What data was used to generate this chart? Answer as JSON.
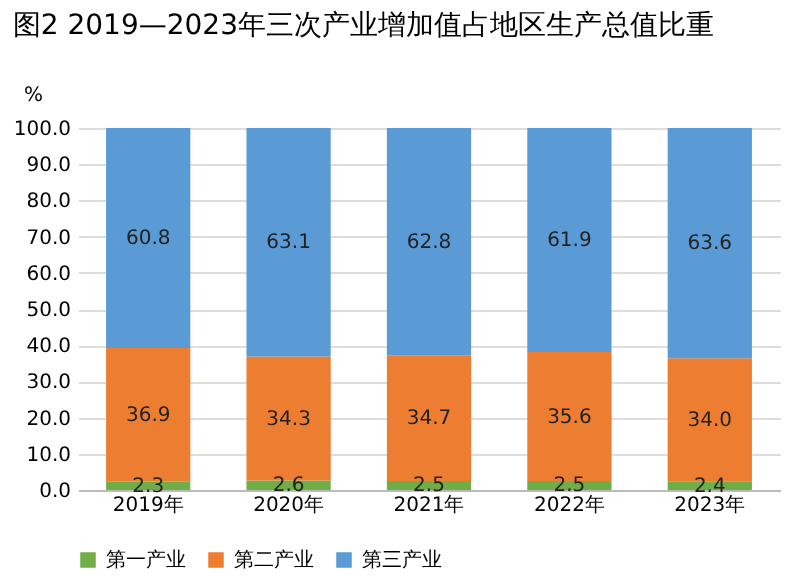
{
  "chart_data": {
    "type": "bar",
    "title": "图2 2019—2023年三次产业增加值占地区生产总值比重",
    "ylabel": "%",
    "categories": [
      "2019年",
      "2020年",
      "2021年",
      "2022年",
      "2023年"
    ],
    "stacked": true,
    "series": [
      {
        "name": "第一产业",
        "color": "#70ad47",
        "values": [
          2.3,
          2.6,
          2.5,
          2.5,
          2.4
        ],
        "value_labels": [
          "2.3",
          "2.6",
          "2.5",
          "2.5",
          "2.4"
        ]
      },
      {
        "name": "第二产业",
        "color": "#ed7d31",
        "values": [
          36.9,
          34.3,
          34.7,
          35.6,
          34.0
        ],
        "value_labels": [
          "36.9",
          "34.3",
          "34.7",
          "35.6",
          "34.0"
        ]
      },
      {
        "name": "第三产业",
        "color": "#5b9bd5",
        "values": [
          60.8,
          63.1,
          62.8,
          61.9,
          63.6
        ],
        "value_labels": [
          "60.8",
          "63.1",
          "62.8",
          "61.9",
          "63.6"
        ]
      }
    ],
    "ylim": [
      0,
      100
    ],
    "yticks": [
      {
        "value": 0,
        "label": "0.0"
      },
      {
        "value": 10,
        "label": "10.0"
      },
      {
        "value": 20,
        "label": "20.0"
      },
      {
        "value": 30,
        "label": "30.0"
      },
      {
        "value": 40,
        "label": "40.0"
      },
      {
        "value": 50,
        "label": "50.0"
      },
      {
        "value": 60,
        "label": "60.0"
      },
      {
        "value": 70,
        "label": "70.0"
      },
      {
        "value": 80,
        "label": "80.0"
      },
      {
        "value": 90,
        "label": "90.0"
      },
      {
        "value": 100,
        "label": "100.0"
      }
    ],
    "grid": "y",
    "legend": "bottom"
  }
}
